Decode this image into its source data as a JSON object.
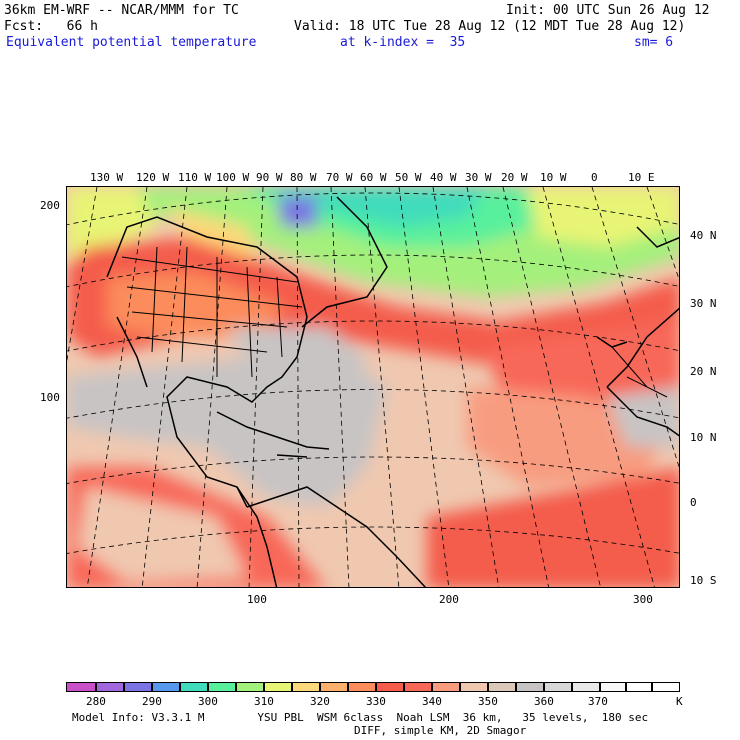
{
  "header": {
    "model": "36km EM-WRF -- NCAR/MMM for TC",
    "init": "Init: 00 UTC Sun 26 Aug 12",
    "fcst": "Fcst:   66 h",
    "valid": "Valid: 18 UTC Tue 28 Aug 12 (12 MDT Tue 28 Aug 12)",
    "field": "Equivalent potential temperature",
    "level": "at k-index =  35",
    "smooth": "sm= 6"
  },
  "top_lon_labels": [
    "130 W",
    "120 W",
    "110 W",
    "100 W",
    "90 W",
    "80 W",
    "70 W",
    "60 W",
    "50 W",
    "40 W",
    "30 W",
    "20 W",
    "10 W",
    "0",
    "10 E"
  ],
  "right_lat_labels": [
    "40 N",
    "30 N",
    "20 N",
    "10 N",
    "0",
    "10 S"
  ],
  "left_axis_labels": [
    "200",
    "100"
  ],
  "bottom_axis_labels": [
    "100",
    "200",
    "300"
  ],
  "colorbar": {
    "ticks": [
      "280",
      "290",
      "300",
      "310",
      "320",
      "330",
      "340",
      "350",
      "360",
      "370"
    ],
    "unit": "K",
    "colors": [
      "#c850c8",
      "#a068dc",
      "#7c74e4",
      "#5898ec",
      "#40dcbc",
      "#58f09c",
      "#a4f07c",
      "#e8f474",
      "#fcd87c",
      "#fcb06c",
      "#fc8c5c",
      "#f45c4c",
      "#f86858",
      "#f89c80",
      "#f0c8b0",
      "#dcc8b8",
      "#c8c4c4",
      "#d8d8d8",
      "#e8e8e8",
      "#f8f8f8",
      "#ffffff",
      "#ffffff"
    ]
  },
  "footer": {
    "line1": "Model Info: V3.3.1 M        YSU PBL  WSM 6class  Noah LSM  36 km,   35 levels,  180 sec",
    "line2": "DIFF, simple KM, 2D Smagor"
  }
}
